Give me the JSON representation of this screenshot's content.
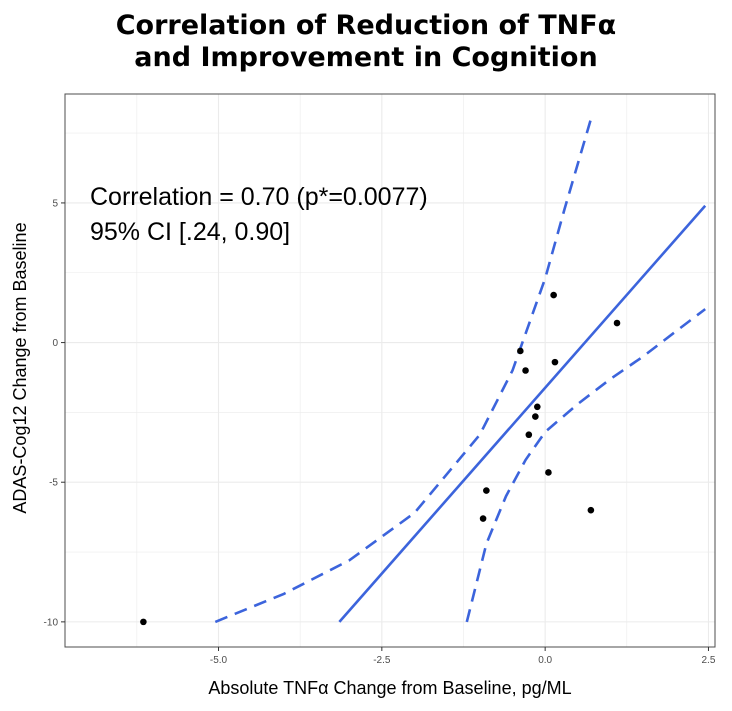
{
  "chart_data": {
    "type": "scatter",
    "title": [
      "Correlation of Reduction of TNFα",
      "and Improvement in Cognition"
    ],
    "xlabel": "Absolute TNFα Change from Baseline, pg/ML",
    "ylabel": "ADAS-Cog12 Change from Baseline",
    "xlim": [
      -7.35,
      2.6
    ],
    "ylim": [
      -10.9,
      8.9
    ],
    "x_ticks": [
      -5.0,
      -2.5,
      0.0,
      2.5
    ],
    "x_tick_labels": [
      "-5.0",
      "-2.5",
      "0.0",
      "2.5"
    ],
    "y_ticks": [
      -10,
      -5,
      0,
      5
    ],
    "y_tick_labels": [
      "-10",
      "-5",
      "0",
      "5"
    ],
    "grid": true,
    "points": [
      {
        "x": -6.15,
        "y": -10.0
      },
      {
        "x": -0.95,
        "y": -6.3
      },
      {
        "x": -0.9,
        "y": -5.3
      },
      {
        "x": 0.05,
        "y": -4.65
      },
      {
        "x": 0.7,
        "y": -6.0
      },
      {
        "x": -0.25,
        "y": -3.3
      },
      {
        "x": -0.15,
        "y": -2.65
      },
      {
        "x": -0.12,
        "y": -2.3
      },
      {
        "x": -0.3,
        "y": -1.0
      },
      {
        "x": -0.38,
        "y": -0.3
      },
      {
        "x": 0.15,
        "y": -0.7
      },
      {
        "x": 0.13,
        "y": 1.7
      },
      {
        "x": 1.1,
        "y": 0.7
      }
    ],
    "fit_line": {
      "x": [
        -3.15,
        2.45
      ],
      "y": [
        -10.0,
        4.9
      ]
    },
    "ci_upper": {
      "x": [
        -5.05,
        -4.0,
        -3.0,
        -2.0,
        -1.0,
        -0.5,
        0.0,
        0.3,
        0.7
      ],
      "y": [
        -10.0,
        -9.0,
        -7.8,
        -6.1,
        -3.3,
        -1.0,
        2.3,
        4.8,
        8.0
      ]
    },
    "ci_lower": {
      "x": [
        -1.2,
        -0.9,
        -0.6,
        -0.3,
        0.0,
        0.5,
        1.0,
        1.5,
        2.0,
        2.45
      ],
      "y": [
        -10.0,
        -7.2,
        -5.5,
        -4.2,
        -3.2,
        -2.2,
        -1.3,
        -0.5,
        0.4,
        1.2
      ]
    },
    "annotations": [
      "Correlation = 0.70 (p*=0.0077)",
      "95% CI [.24, 0.90]"
    ],
    "colors": {
      "fit": "#3c64dc",
      "points": "#000000",
      "grid": "#ebebeb",
      "panel_border": "#4d4d4d"
    }
  }
}
